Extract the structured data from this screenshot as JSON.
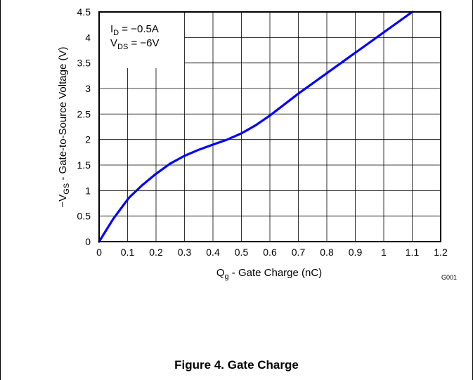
{
  "chart_data": {
    "type": "line",
    "xlabel": "Q",
    "xlabel_sub": "g",
    "xlabel_rest": " - Gate Charge (nC)",
    "ylabel_prefix": "−V",
    "ylabel_sub": "GS",
    "ylabel_rest": " - Gate-to-Source Voltage (V)",
    "xlim": [
      0,
      1.2
    ],
    "ylim": [
      0,
      4.5
    ],
    "xticks": [
      "0",
      "0.1",
      "0.2",
      "0.3",
      "0.4",
      "0.5",
      "0.6",
      "0.7",
      "0.8",
      "0.9",
      "1",
      "1.1",
      "1.2"
    ],
    "yticks": [
      "0",
      "0.5",
      "1",
      "1.5",
      "2",
      "2.5",
      "3",
      "3.5",
      "4",
      "4.5"
    ],
    "grid": true,
    "series": [
      {
        "color": "#0000ff",
        "x": [
          0,
          0.05,
          0.105,
          0.15,
          0.2,
          0.25,
          0.3,
          0.35,
          0.4,
          0.45,
          0.5,
          0.55,
          0.6,
          0.7,
          0.8,
          0.9,
          1.0,
          1.1
        ],
        "y": [
          0,
          0.45,
          0.86,
          1.1,
          1.33,
          1.53,
          1.68,
          1.8,
          1.9,
          2.0,
          2.12,
          2.28,
          2.47,
          2.9,
          3.3,
          3.7,
          4.1,
          4.5
        ]
      }
    ],
    "annotations": [
      {
        "main": "I",
        "sub": "D",
        "rest": " = −0.5A"
      },
      {
        "main": "V",
        "sub": "DS",
        "rest": " = −6V"
      }
    ],
    "figure_id": "G001"
  },
  "caption": "Figure 4. Gate Charge"
}
